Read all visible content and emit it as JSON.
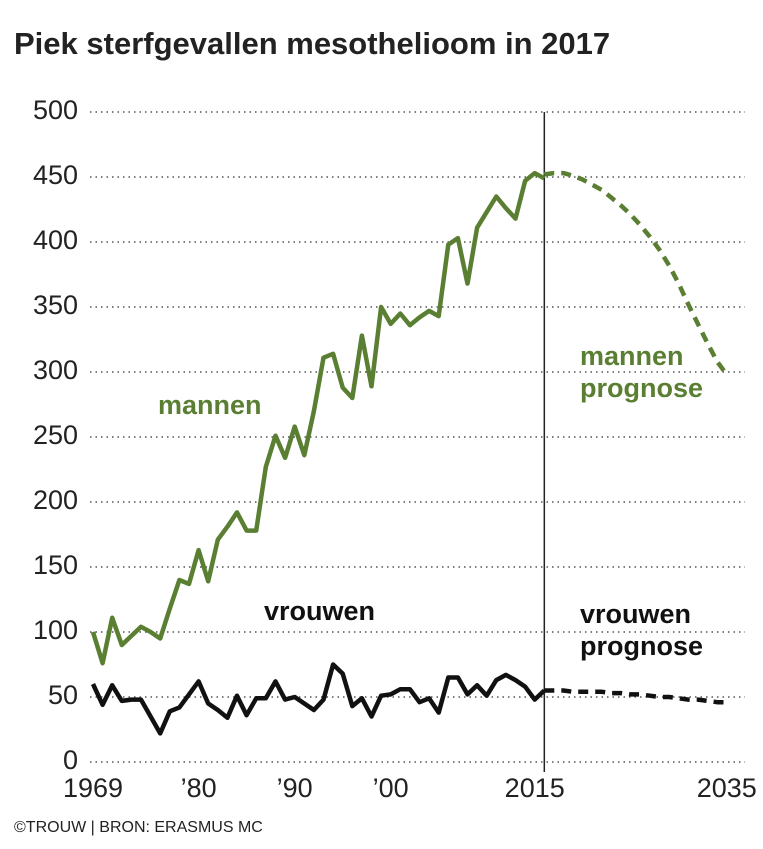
{
  "chart_data": {
    "type": "line",
    "title": "Piek sterfgevallen mesothelioom in 2017",
    "source": "©TROUW | BRON: ERASMUS MC",
    "ylim": [
      0,
      500
    ],
    "yticks": [
      0,
      50,
      100,
      150,
      200,
      250,
      300,
      350,
      400,
      450,
      500
    ],
    "xlim": [
      1968.27,
      2036.9
    ],
    "xticks": [
      1969,
      {
        "value": 1980,
        "label": "’80"
      },
      {
        "value": 1990,
        "label": "’90"
      },
      {
        "value": 2000,
        "label": "’00"
      },
      2015,
      2035
    ],
    "grid": true,
    "divider_x": 2016,
    "series": [
      {
        "name": "mannen",
        "color": "#5a7f32",
        "dashed": false,
        "x": [
          1969,
          1970,
          1971,
          1972,
          1973,
          1974,
          1975,
          1976,
          1977,
          1978,
          1979,
          1980,
          1981,
          1982,
          1983,
          1984,
          1985,
          1986,
          1987,
          1988,
          1989,
          1990,
          1991,
          1992,
          1993,
          1994,
          1995,
          1996,
          1997,
          1998,
          1999,
          2000,
          2001,
          2002,
          2003,
          2004,
          2005,
          2006,
          2007,
          2008,
          2009,
          2010,
          2011,
          2012,
          2013,
          2014,
          2015,
          2016
        ],
        "values": [
          100,
          76,
          111,
          90,
          97,
          104,
          100,
          95,
          118,
          140,
          137,
          163,
          139,
          171,
          181,
          192,
          178,
          178,
          227,
          251,
          234,
          258,
          236,
          270,
          311,
          314,
          288,
          280,
          328,
          289,
          350,
          337,
          345,
          336,
          342,
          347,
          343,
          398,
          403,
          368,
          411,
          423,
          435,
          426,
          418,
          447,
          453,
          449
        ]
      },
      {
        "name": "vrouwen",
        "color": "#111111",
        "dashed": false,
        "x": [
          1969,
          1970,
          1971,
          1972,
          1973,
          1974,
          1975,
          1976,
          1977,
          1978,
          1979,
          1980,
          1981,
          1982,
          1983,
          1984,
          1985,
          1986,
          1987,
          1988,
          1989,
          1990,
          1991,
          1992,
          1993,
          1994,
          1995,
          1996,
          1997,
          1998,
          1999,
          2000,
          2001,
          2002,
          2003,
          2004,
          2005,
          2006,
          2007,
          2008,
          2009,
          2010,
          2011,
          2012,
          2013,
          2014,
          2015,
          2016
        ],
        "values": [
          60,
          44,
          59,
          47,
          48,
          48,
          35,
          22,
          39,
          42,
          52,
          62,
          45,
          40,
          34,
          51,
          36,
          49,
          49,
          62,
          48,
          50,
          45,
          40,
          48,
          75,
          68,
          43,
          49,
          35,
          51,
          52,
          56,
          56,
          46,
          49,
          38,
          65,
          65,
          52,
          59,
          51,
          63,
          67,
          63,
          58,
          48,
          55
        ]
      },
      {
        "name": "mannen prognose",
        "color": "#5a7f32",
        "dashed": true,
        "x": [
          2016,
          2017,
          2018,
          2019,
          2020,
          2021,
          2022,
          2023,
          2024,
          2025,
          2026,
          2027,
          2028,
          2029,
          2030,
          2031,
          2032,
          2033,
          2034,
          2035
        ],
        "values": [
          452,
          453,
          453,
          451,
          448,
          444,
          440,
          434,
          428,
          421,
          413,
          404,
          394,
          382,
          368,
          352,
          337,
          322,
          308,
          298
        ]
      },
      {
        "name": "vrouwen prognose",
        "color": "#111111",
        "dashed": true,
        "x": [
          2016,
          2017,
          2018,
          2019,
          2020,
          2021,
          2022,
          2023,
          2024,
          2025,
          2026,
          2027,
          2028,
          2029,
          2030,
          2031,
          2032,
          2033,
          2034,
          2035
        ],
        "values": [
          55,
          55,
          55,
          54,
          54,
          54,
          54,
          53,
          53,
          52,
          52,
          51,
          50,
          50,
          49,
          48,
          48,
          47,
          46,
          46
        ]
      }
    ]
  }
}
